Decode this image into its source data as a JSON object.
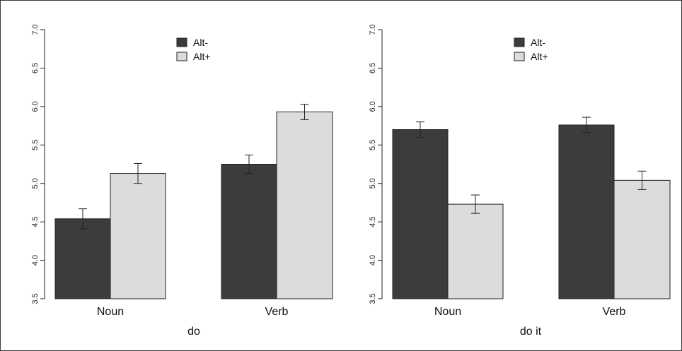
{
  "chart_data": [
    {
      "type": "bar",
      "categories": [
        "Noun",
        "Verb"
      ],
      "series": [
        {
          "name": "Alt-",
          "values": [
            4.54,
            5.25
          ],
          "errors": [
            0.13,
            0.12
          ],
          "color": "#3c3c3c"
        },
        {
          "name": "Alt+",
          "values": [
            5.13,
            5.93
          ],
          "errors": [
            0.13,
            0.1
          ],
          "color": "#dcdcdc"
        }
      ],
      "xlabel": "do",
      "ylabel": "",
      "ylim": [
        3.5,
        7.0
      ],
      "yticks": [
        "3.5",
        "4.0",
        "4.5",
        "5.0",
        "5.5",
        "6.0",
        "6.5",
        "7.0"
      ],
      "legend_position": "top-center",
      "grid": false
    },
    {
      "type": "bar",
      "categories": [
        "Noun",
        "Verb"
      ],
      "series": [
        {
          "name": "Alt-",
          "values": [
            5.7,
            5.76
          ],
          "errors": [
            0.1,
            0.1
          ],
          "color": "#3c3c3c"
        },
        {
          "name": "Alt+",
          "values": [
            4.73,
            5.04
          ],
          "errors": [
            0.12,
            0.12
          ],
          "color": "#dcdcdc"
        }
      ],
      "xlabel": "do it",
      "ylabel": "",
      "ylim": [
        3.5,
        7.0
      ],
      "yticks": [
        "3.5",
        "4.0",
        "4.5",
        "5.0",
        "5.5",
        "6.0",
        "6.5",
        "7.0"
      ],
      "legend_position": "top-center",
      "grid": false
    }
  ]
}
